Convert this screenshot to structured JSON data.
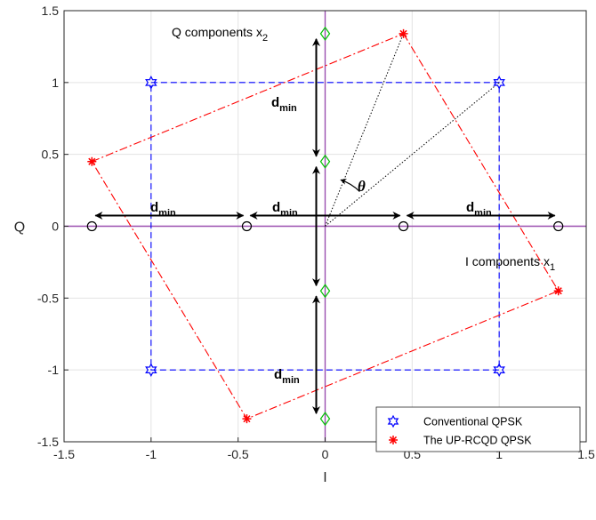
{
  "chart_data": {
    "type": "scatter",
    "xlabel": "I",
    "ylabel": "Q",
    "xlim": [
      -1.5,
      1.5
    ],
    "ylim": [
      -1.5,
      1.5
    ],
    "xticks": [
      -1.5,
      -1,
      -0.5,
      0,
      0.5,
      1,
      1.5
    ],
    "yticks": [
      -1.5,
      -1,
      -0.5,
      0,
      0.5,
      1,
      1.5
    ],
    "xtick_labels": [
      "-1.5",
      "-1",
      "-0.5",
      "0",
      "0.5",
      "1",
      "1.5"
    ],
    "ytick_labels": [
      "-1.5",
      "-1",
      "-0.5",
      "0",
      "0.5",
      "1",
      "1.5"
    ],
    "grid": true,
    "legend_position": "bottom-right",
    "series": [
      {
        "name": "Conventional QPSK",
        "marker": "hexagram",
        "color": "#0000ff",
        "line_style": "dashed",
        "x": [
          -1,
          1,
          1,
          -1
        ],
        "y": [
          1,
          1,
          -1,
          -1
        ]
      },
      {
        "name": "The UP-RCQD QPSK",
        "marker": "asterisk",
        "color": "#ff0000",
        "line_style": "dashdot",
        "x": [
          0.45,
          1.34,
          -0.45,
          -1.34
        ],
        "y": [
          1.34,
          -0.45,
          -1.34,
          0.45
        ]
      }
    ],
    "projections": {
      "i_components": {
        "marker": "circle",
        "color": "#000000",
        "x": [
          -1.34,
          -0.45,
          0.45,
          1.34
        ],
        "y": [
          0,
          0,
          0,
          0
        ]
      },
      "q_components": {
        "marker": "diamond",
        "color": "#00c000",
        "x": [
          0,
          0,
          0,
          0
        ],
        "y": [
          1.34,
          0.45,
          -0.45,
          -1.34
        ]
      }
    },
    "annotations": {
      "q_components": {
        "text": "Q components x",
        "sub": "2"
      },
      "i_components": {
        "text": "I components x",
        "sub": "1"
      },
      "dmin": {
        "main": "d",
        "sub": "min"
      },
      "theta": "θ"
    }
  }
}
